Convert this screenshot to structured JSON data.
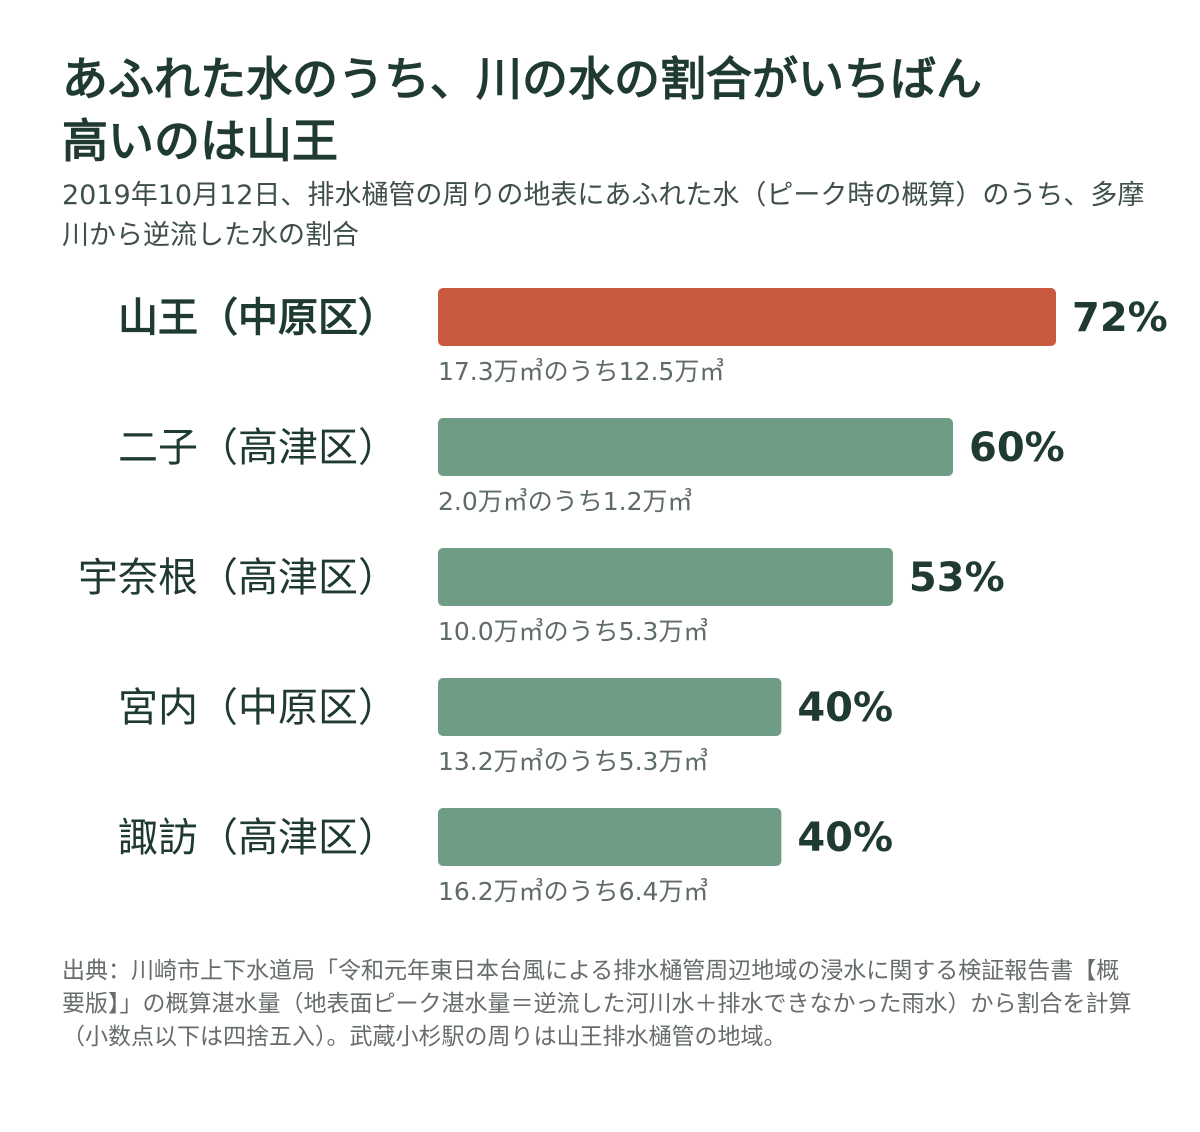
{
  "title_line1": "あふれた水のうち、川の水の割合がいちばん",
  "title_line2": "高いのは山王",
  "subtitle": "2019年10月12日、排水樋管の周りの地表にあふれた水（ピーク時の概算）のうち、多摩川から逆流した水の割合",
  "source": "出典：川崎市上下水道局「令和元年東日本台風による排水樋管周辺地域の浸水に関する検証報告書【概要版】」の概算湛水量（地表面ピーク湛水量＝逆流した河川水＋排水できなかった雨水）から割合を計算（小数点以下は四捨五入）。武蔵小杉駅の周りは山王排水樋管の地域。",
  "colors": {
    "highlight": "#c85a40",
    "bar": "#6e9c84",
    "text_dark": "#1f3a30",
    "text_muted": "#5f6b66"
  },
  "chart_data": {
    "type": "bar",
    "orientation": "horizontal",
    "categories": [
      "山王（中原区）",
      "二子（高津区）",
      "宇奈根（高津区）",
      "宮内（中原区）",
      "諏訪（高津区）"
    ],
    "values": [
      72,
      60,
      53,
      40,
      40
    ],
    "value_labels": [
      "72%",
      "60%",
      "53%",
      "40%",
      "40%"
    ],
    "annotations": [
      "17.3万㎥のうち12.5万㎥",
      "2.0万㎥のうち1.2万㎥",
      "10.0万㎥のうち5.3万㎥",
      "13.2万㎥のうち5.3万㎥",
      "16.2万㎥のうち6.4万㎥"
    ],
    "highlight_index": 0,
    "xlim": [
      0,
      72
    ],
    "unit": "%",
    "grid": false,
    "legend": "none"
  }
}
